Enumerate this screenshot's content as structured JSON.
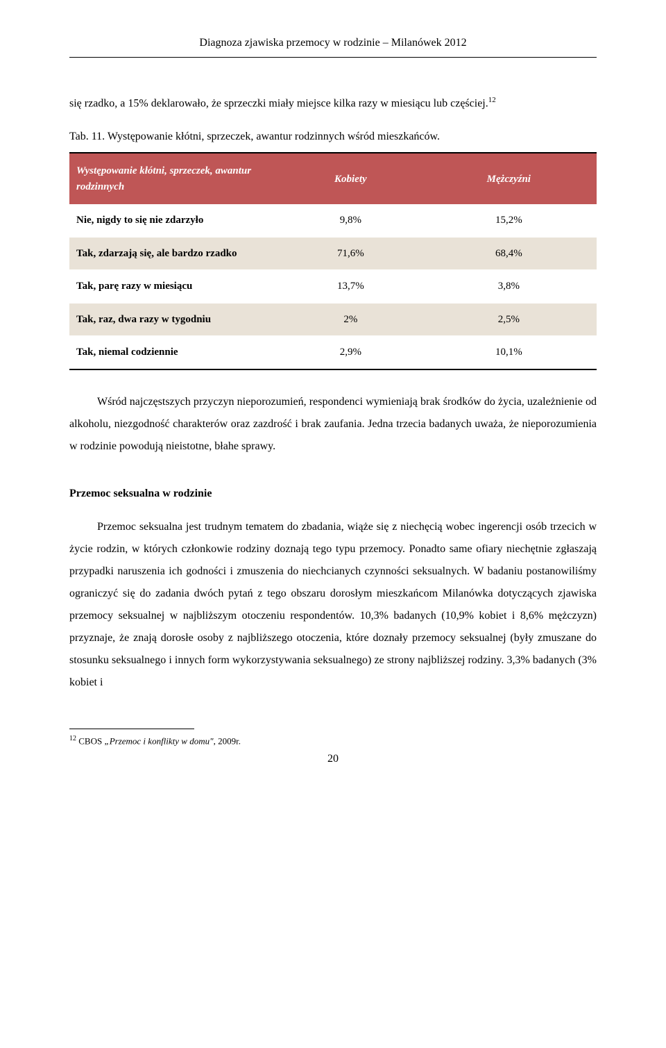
{
  "header": {
    "title": "Diagnoza zjawiska przemocy w rodzinie – Milanówek 2012"
  },
  "intro": {
    "text": "się rzadko, a 15% deklarowało, że sprzeczki miały miejsce kilka razy w miesiącu lub częściej.",
    "footnote_ref": "12"
  },
  "table_caption": "Tab. 11. Występowanie kłótni, sprzeczek, awantur rodzinnych wśród mieszkańców.",
  "table": {
    "header_bg": "#bf5656",
    "header_fg": "#ffffff",
    "row_alt_bg": "#e9e2d7",
    "columns": [
      "Występowanie kłótni, sprzeczek, awantur rodzinnych",
      "Kobiety",
      "Mężczyźni"
    ],
    "rows": [
      [
        "Nie, nigdy to się nie zdarzyło",
        "9,8%",
        "15,2%"
      ],
      [
        "Tak, zdarzają się, ale bardzo rzadko",
        "71,6%",
        "68,4%"
      ],
      [
        "Tak, parę razy w miesiącu",
        "13,7%",
        "3,8%"
      ],
      [
        "Tak, raz, dwa razy w tygodniu",
        "2%",
        "2,5%"
      ],
      [
        "Tak, niemal codziennie",
        "2,9%",
        "10,1%"
      ]
    ]
  },
  "para1": "Wśród najczęstszych przyczyn nieporozumień, respondenci wymieniają brak środków do życia, uzależnienie od alkoholu, niezgodność charakterów oraz zazdrość i brak zaufania. Jedna trzecia badanych uważa, że nieporozumienia w rodzinie powodują nieistotne, błahe sprawy.",
  "section_heading": "Przemoc seksualna w rodzinie",
  "para2": "Przemoc seksualna jest trudnym tematem do zbadania, wiąże się z niechęcią wobec ingerencji osób trzecich w życie rodzin, w których członkowie rodziny doznają tego typu przemocy. Ponadto same ofiary niechętnie zgłaszają przypadki naruszenia ich godności i zmuszenia do niechcianych czynności seksualnych. W badaniu postanowiliśmy ograniczyć się do zadania dwóch pytań z tego obszaru dorosłym mieszkańcom Milanówka dotyczących zjawiska przemocy seksualnej w najbliższym otoczeniu respondentów. 10,3% badanych (10,9% kobiet i 8,6% mężczyzn) przyznaje, że znają dorosłe osoby z najbliższego otoczenia, które doznały przemocy seksualnej (były zmuszane do stosunku seksualnego i innych form wykorzystywania seksualnego) ze strony najbliższej rodziny. 3,3% badanych (3% kobiet i",
  "footnote": {
    "ref": "12",
    "source_prefix": " CBOS ",
    "source_italic": "„Przemoc i konflikty w domu\",",
    "source_suffix": " 2009r."
  },
  "page_number": "20"
}
